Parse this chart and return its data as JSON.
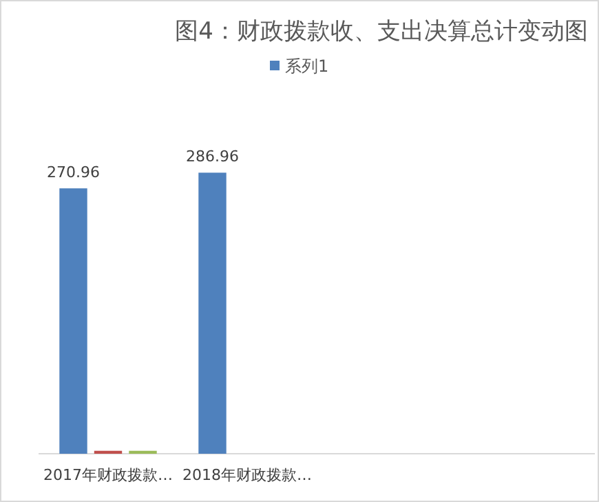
{
  "chart_data": {
    "type": "bar",
    "title": "图4：财政拨款收、支出决算总计变动图",
    "categories": [
      "2017年财政拨款…",
      "2018年财政拨款…",
      null,
      null
    ],
    "series": [
      {
        "name": "系列1",
        "color": "#4f81bd",
        "values": [
          270.96,
          286.96,
          null,
          null
        ],
        "value_labels": [
          "270.96",
          "286.96",
          null,
          null
        ]
      },
      {
        "color": "#c0504d",
        "values": [
          3,
          null,
          null,
          null
        ]
      },
      {
        "color": "#9bbb59",
        "values": [
          3,
          null,
          null,
          null
        ]
      }
    ],
    "tick_labels": "x",
    "legend": "top"
  }
}
